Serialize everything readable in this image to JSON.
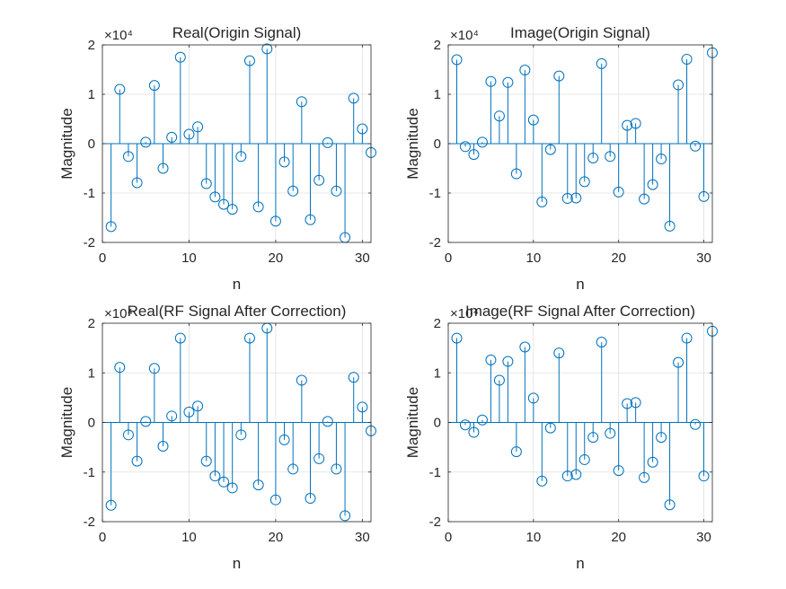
{
  "figure": {
    "background": "#ffffff",
    "axes_color": "#262626",
    "grid_color": "#dfdfdf",
    "stem_color": "#0072bd"
  },
  "chart_data": [
    {
      "type": "stem",
      "title": "Real(Origin Signal)",
      "xlabel": "n",
      "ylabel": "Magnitude",
      "exponent_label": "×10⁴",
      "xlim": [
        0,
        31
      ],
      "ylim": [
        -20000,
        20000
      ],
      "xticks": [
        0,
        10,
        20,
        30
      ],
      "yticks": [
        -20000,
        -10000,
        0,
        10000,
        20000
      ],
      "ytick_labels": [
        "-2",
        "-1",
        "0",
        "1",
        "2"
      ],
      "grid": true,
      "x": [
        1,
        2,
        3,
        4,
        5,
        6,
        7,
        8,
        9,
        10,
        11,
        12,
        13,
        14,
        15,
        16,
        17,
        18,
        19,
        20,
        21,
        22,
        23,
        24,
        25,
        26,
        27,
        28,
        29,
        30,
        31
      ],
      "values": [
        -16800,
        11000,
        -2600,
        -7900,
        300,
        11800,
        -5000,
        1300,
        17500,
        1900,
        3400,
        -8100,
        -10800,
        -12300,
        -13300,
        -2600,
        16800,
        -12800,
        19200,
        -15700,
        -3700,
        -9600,
        8500,
        -15400,
        -7400,
        200,
        -9600,
        -19000,
        9200,
        3000,
        -1800
      ]
    },
    {
      "type": "stem",
      "title": "Image(Origin Signal)",
      "xlabel": "n",
      "ylabel": "Magnitude",
      "exponent_label": "×10⁴",
      "xlim": [
        0,
        31
      ],
      "ylim": [
        -20000,
        20000
      ],
      "xticks": [
        0,
        10,
        20,
        30
      ],
      "yticks": [
        -20000,
        -10000,
        0,
        10000,
        20000
      ],
      "ytick_labels": [
        "-2",
        "-1",
        "0",
        "1",
        "2"
      ],
      "grid": true,
      "x": [
        1,
        2,
        3,
        4,
        5,
        6,
        7,
        8,
        9,
        10,
        11,
        12,
        13,
        14,
        15,
        16,
        17,
        18,
        19,
        20,
        21,
        22,
        23,
        24,
        25,
        26,
        27,
        28,
        29,
        30,
        31
      ],
      "values": [
        17000,
        -600,
        -2200,
        300,
        12600,
        5600,
        12400,
        -6100,
        14900,
        4800,
        -11800,
        -1200,
        13700,
        -11100,
        -11000,
        -7700,
        -2900,
        16200,
        -2600,
        -9800,
        3700,
        4100,
        -11200,
        -8300,
        -3100,
        -16700,
        11900,
        17100,
        -500,
        -10700,
        18400
      ]
    },
    {
      "type": "stem",
      "title": "Real(RF Signal After Correction)",
      "xlabel": "n",
      "ylabel": "Magnitude",
      "exponent_label": "×10⁴",
      "xlim": [
        0,
        31
      ],
      "ylim": [
        -20000,
        20000
      ],
      "xticks": [
        0,
        10,
        20,
        30
      ],
      "yticks": [
        -20000,
        -10000,
        0,
        10000,
        20000
      ],
      "ytick_labels": [
        "-2",
        "-1",
        "0",
        "1",
        "2"
      ],
      "grid": true,
      "x": [
        1,
        2,
        3,
        4,
        5,
        6,
        7,
        8,
        9,
        10,
        11,
        12,
        13,
        14,
        15,
        16,
        17,
        18,
        19,
        20,
        21,
        22,
        23,
        24,
        25,
        26,
        27,
        28,
        29,
        30,
        31
      ],
      "values": [
        -16700,
        11100,
        -2500,
        -7800,
        200,
        10900,
        -4800,
        1300,
        17000,
        2100,
        3300,
        -7800,
        -10800,
        -12000,
        -13200,
        -2500,
        17000,
        -12600,
        19000,
        -15600,
        -3500,
        -9400,
        8500,
        -15300,
        -7300,
        200,
        -9400,
        -18800,
        9100,
        3100,
        -1700
      ]
    },
    {
      "type": "stem",
      "title": "Image(RF Signal After Correction)",
      "xlabel": "n",
      "ylabel": "Magnitude",
      "exponent_label": "×10⁴",
      "xlim": [
        0,
        31
      ],
      "ylim": [
        -20000,
        20000
      ],
      "xticks": [
        0,
        10,
        20,
        30
      ],
      "yticks": [
        -20000,
        -10000,
        0,
        10000,
        20000
      ],
      "ytick_labels": [
        "-2",
        "-1",
        "0",
        "1",
        "2"
      ],
      "grid": true,
      "x": [
        1,
        2,
        3,
        4,
        5,
        6,
        7,
        8,
        9,
        10,
        11,
        12,
        13,
        14,
        15,
        16,
        17,
        18,
        19,
        20,
        21,
        22,
        23,
        24,
        25,
        26,
        27,
        28,
        29,
        30,
        31
      ],
      "values": [
        17000,
        -500,
        -2000,
        500,
        12600,
        8500,
        12300,
        -5900,
        15200,
        4900,
        -11800,
        -1100,
        14000,
        -10800,
        -10500,
        -7500,
        -3000,
        16200,
        -2200,
        -9700,
        3800,
        4000,
        -11100,
        -8000,
        -3000,
        -16600,
        12100,
        17000,
        -400,
        -10800,
        18400
      ]
    }
  ]
}
